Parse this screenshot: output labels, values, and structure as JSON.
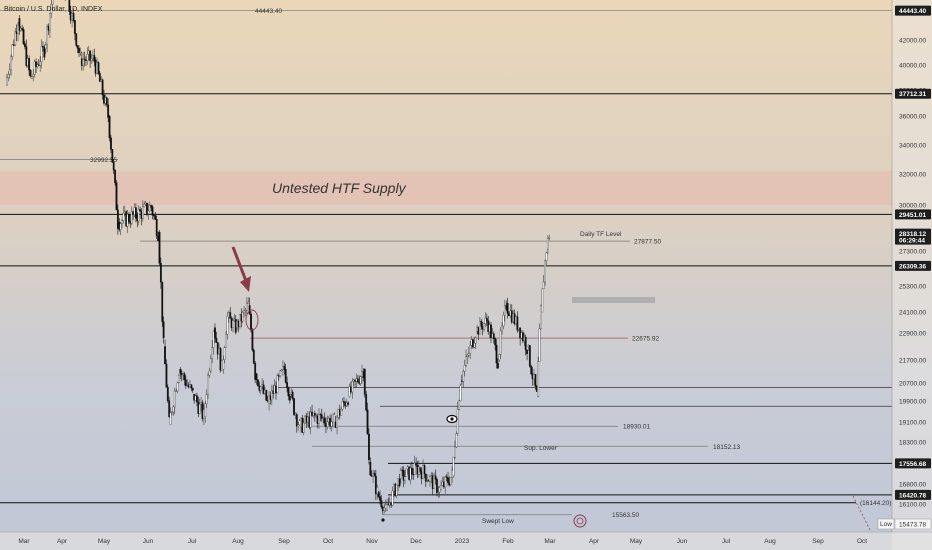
{
  "header": {
    "title": "Bitcoin / U.S. Dollar, 1D, INDEX"
  },
  "colors": {
    "up": "#444444",
    "down": "#111111",
    "accent": "#8b3a4a",
    "supply": "#e6b8ad",
    "badge": "#1e1e1e"
  },
  "chart_data": {
    "type": "candlestick",
    "title": "Bitcoin / U.S. Dollar, 1D, INDEX",
    "currency": "USD",
    "y_ticks": [
      "42000.00",
      "40000.00",
      "38000.00",
      "36000.00",
      "34000.00",
      "32000.00",
      "30000.00",
      "27300.00",
      "26300.00",
      "25300.00",
      "24100.00",
      "22900.00",
      "21700.00",
      "20700.00",
      "19900.00",
      "19100.00",
      "18300.00",
      "17500.00",
      "16800.00",
      "16100.00"
    ],
    "x_ticks": [
      "Mar",
      "Apr",
      "May",
      "Jun",
      "Jul",
      "Aug",
      "Sep",
      "Oct",
      "Nov",
      "Dec",
      "2023",
      "Feb",
      "Mar",
      "Apr",
      "May",
      "Jun",
      "Jul",
      "Aug",
      "Sep",
      "Oct"
    ],
    "zones": [
      {
        "label": "Untested HTF Supply",
        "from": 30000,
        "to": 32200
      }
    ],
    "horizontal_lines": [
      {
        "value": 44443.4,
        "label": "44443.40"
      },
      {
        "value": 37712.31,
        "label": "37712.31"
      },
      {
        "value": 32992.55,
        "label": "32992.55"
      },
      {
        "value": 29451.01,
        "label": "29451.01"
      },
      {
        "value": 27877.5,
        "label": "27877.50"
      },
      {
        "value": 26309.36,
        "label": "26309.36"
      },
      {
        "value": 22675.92,
        "label": "22675.92"
      },
      {
        "value": 20500,
        "label": ""
      },
      {
        "value": 19700,
        "label": ""
      },
      {
        "value": 18930.01,
        "label": "18930.01"
      },
      {
        "value": 18152.13,
        "label": "18152.13"
      },
      {
        "value": 17556.68,
        "label": "17556.68"
      },
      {
        "value": 16420.78,
        "label": "16420.78"
      },
      {
        "value": 16144.2,
        "label": "(16144.20)"
      },
      {
        "value": 15563.5,
        "label": "15563.50"
      }
    ],
    "annotations": [
      "Daily TF Level",
      "Sup. Lower",
      "Swept Low",
      "Low"
    ],
    "axis_badges": [
      {
        "label": "44443.40"
      },
      {
        "label": "37712.31"
      },
      {
        "label": "29451.01"
      },
      {
        "label": "28318.12",
        "sub": "06:29:44"
      },
      {
        "label": "26309.36"
      },
      {
        "label": "17556.68"
      },
      {
        "label": "16420.78"
      },
      {
        "label": "15473.78",
        "note": "Low"
      }
    ],
    "last_price": 28318.12,
    "countdown": "06:29:44",
    "low_value": 15473.78,
    "price_path": [
      [
        "2022-02-20",
        38400
      ],
      [
        "2022-03-01",
        43800
      ],
      [
        "2022-03-10",
        38900
      ],
      [
        "2022-03-20",
        41300
      ],
      [
        "2022-03-28",
        47300
      ],
      [
        "2022-04-05",
        46100
      ],
      [
        "2022-04-15",
        40500
      ],
      [
        "2022-04-25",
        40400
      ],
      [
        "2022-05-05",
        36000
      ],
      [
        "2022-05-12",
        29000
      ],
      [
        "2022-05-25",
        29400
      ],
      [
        "2022-06-05",
        29900
      ],
      [
        "2022-06-10",
        28400
      ],
      [
        "2022-06-14",
        22300
      ],
      [
        "2022-06-18",
        19000
      ],
      [
        "2022-06-25",
        21300
      ],
      [
        "2022-07-05",
        20200
      ],
      [
        "2022-07-13",
        19300
      ],
      [
        "2022-07-20",
        23200
      ],
      [
        "2022-07-26",
        21300
      ],
      [
        "2022-07-30",
        23800
      ],
      [
        "2022-08-05",
        23200
      ],
      [
        "2022-08-14",
        24400
      ],
      [
        "2022-08-19",
        21100
      ],
      [
        "2022-08-28",
        19800
      ],
      [
        "2022-09-09",
        21300
      ],
      [
        "2022-09-13",
        20200
      ],
      [
        "2022-09-20",
        18900
      ],
      [
        "2022-10-01",
        19300
      ],
      [
        "2022-10-15",
        19100
      ],
      [
        "2022-10-25",
        20100
      ],
      [
        "2022-11-05",
        21300
      ],
      [
        "2022-11-09",
        17600
      ],
      [
        "2022-11-15",
        16500
      ],
      [
        "2022-11-21",
        15800
      ],
      [
        "2022-12-01",
        17000
      ],
      [
        "2022-12-15",
        17400
      ],
      [
        "2022-12-30",
        16600
      ],
      [
        "2023-01-08",
        17100
      ],
      [
        "2023-01-14",
        20800
      ],
      [
        "2023-01-25",
        23000
      ],
      [
        "2023-02-02",
        23600
      ],
      [
        "2023-02-10",
        21700
      ],
      [
        "2023-02-16",
        24500
      ],
      [
        "2023-02-25",
        23200
      ],
      [
        "2023-03-03",
        22300
      ],
      [
        "2023-03-10",
        20100
      ],
      [
        "2023-03-13",
        24100
      ],
      [
        "2023-03-17",
        27400
      ],
      [
        "2023-03-19",
        28300
      ]
    ]
  }
}
